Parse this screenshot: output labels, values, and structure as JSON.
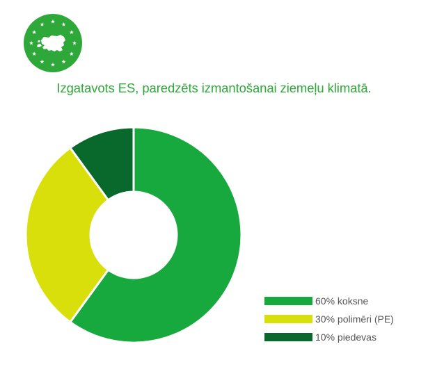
{
  "logo": {
    "icon": "estonia-eu-stars-icon",
    "color": "#2fa83a"
  },
  "headline": "Izgatavots ES, paredzēts izmantošanai ziemeļu klimatā.",
  "chart_data": {
    "type": "pie",
    "style": "donut",
    "categories": [
      "koksne",
      "polimēri (PE)",
      "piedevas"
    ],
    "values": [
      60,
      30,
      10
    ],
    "unit": "%",
    "colors": [
      "#17a93e",
      "#d9df0a",
      "#09692c"
    ],
    "title": "",
    "legend_position": "bottom-right",
    "legend": [
      {
        "label": "60% koksne",
        "color": "#17a93e"
      },
      {
        "label": "30% polimēri (PE)",
        "color": "#d9df0a"
      },
      {
        "label": "10% piedevas",
        "color": "#09692c"
      }
    ]
  }
}
